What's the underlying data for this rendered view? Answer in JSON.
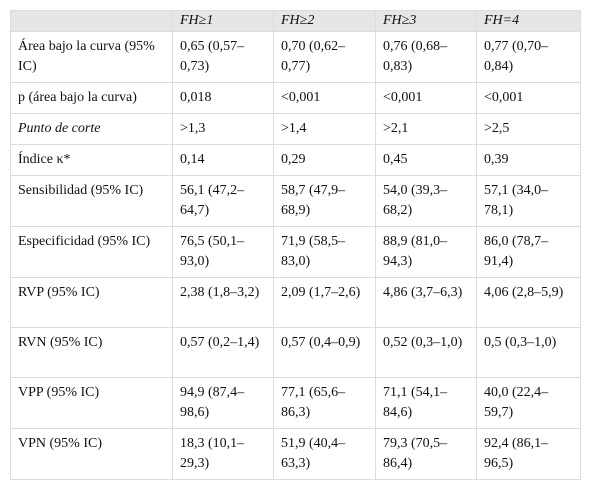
{
  "table": {
    "header": [
      "FH≥1",
      "FH≥2",
      "FH≥3",
      "FH=4"
    ],
    "rows": [
      [
        "Área bajo la curva (95% IC)",
        "0,65 (0,57–0,73)",
        "0,70 (0,62–0,77)",
        "0,76 (0,68–0,83)",
        "0,77 (0,70–0,84)"
      ],
      [
        "p (área bajo la curva)",
        "0,018",
        "<0,001",
        "<0,001",
        "<0,001"
      ],
      [
        "Punto de corte",
        ">1,3",
        ">1,4",
        ">2,1",
        ">2,5"
      ],
      [
        "Índice κ*",
        "0,14",
        "0,29",
        "0,45",
        "0,39"
      ],
      [
        "Sensibilidad (95% IC)",
        "56,1 (47,2–64,7)",
        "58,7 (47,9–68,9)",
        "54,0 (39,3–68,2)",
        "57,1 (34,0–78,1)"
      ],
      [
        "Especificidad (95% IC)",
        "76,5 (50,1–93,0)",
        "71,9 (58,5–83,0)",
        "88,9 (81,0–94,3)",
        "86,0 (78,7–91,4)"
      ],
      [
        "RVP (95% IC)",
        "2,38 (1,8–3,2)",
        "2,09 (1,7–2,6)",
        "4,86 (3,7–6,3)",
        "4,06 (2,8–5,9)"
      ],
      [
        "RVN (95% IC)",
        "0,57 (0,2–1,4)",
        "0,57 (0,4–0,9)",
        "0,52 (0,3–1,0)",
        "0,5 (0,3–1,0)"
      ],
      [
        "VPP (95% IC)",
        "94,9 (87,4–98,6)",
        "77,1 (65,6–86,3)",
        "71,1 (54,1–84,6)",
        "40,0 (22,4–59,7)"
      ],
      [
        "VPN (95% IC)",
        "18,3 (10,1–29,3)",
        "51,9 (40,4–63,3)",
        "79,3 (70,5–86,4)",
        "92,4 (86,1–96,5)"
      ]
    ]
  }
}
